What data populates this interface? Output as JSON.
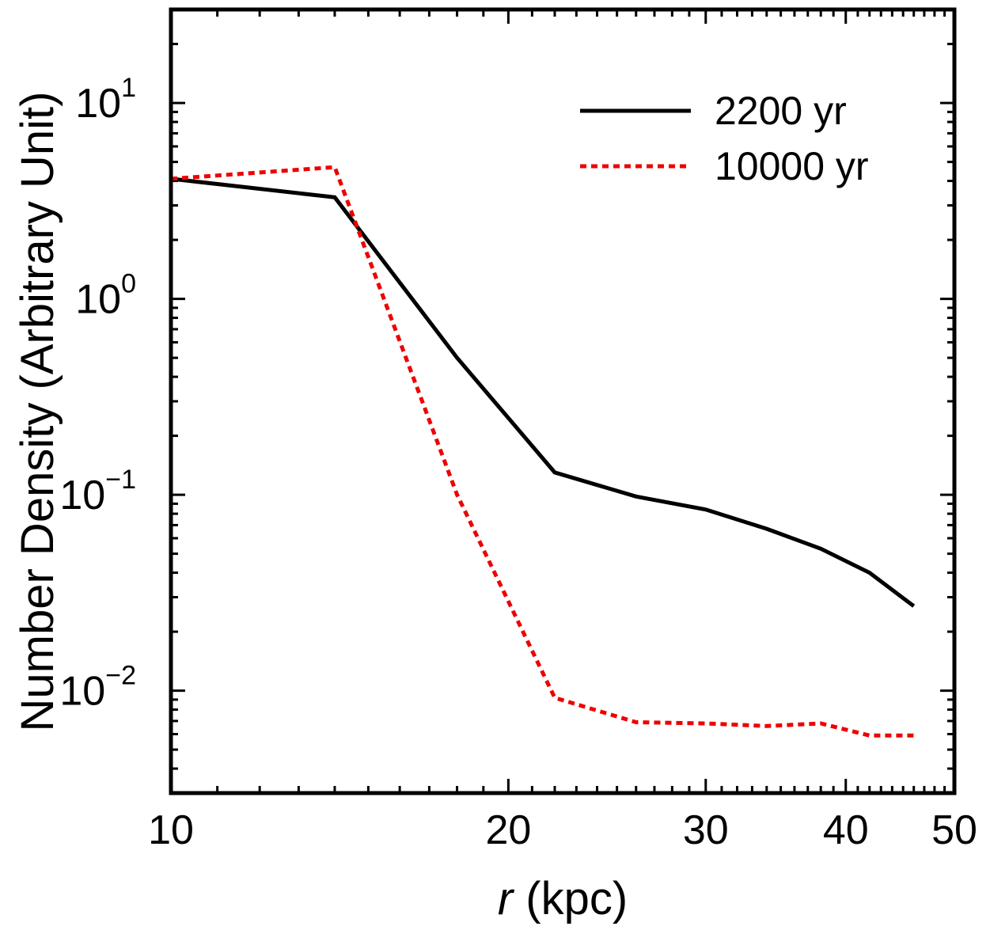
{
  "chart_data": {
    "type": "line",
    "xscale": "log",
    "yscale": "log",
    "xlim": [
      10,
      50
    ],
    "ylim": [
      0.003,
      30
    ],
    "xlabel_var": "r",
    "xlabel_unit": " (kpc)",
    "ylabel": "Number Density (Arbitrary Unit)",
    "x_ticks": [
      {
        "value": 10,
        "label": "10"
      },
      {
        "value": 20,
        "label": "20"
      },
      {
        "value": 30,
        "label": "30"
      },
      {
        "value": 40,
        "label": "40"
      },
      {
        "value": 50,
        "label": "50"
      }
    ],
    "y_ticks": [
      {
        "value": 10,
        "base": "10",
        "exp": "1"
      },
      {
        "value": 1,
        "base": "10",
        "exp": "0"
      },
      {
        "value": 0.1,
        "base": "10",
        "exp": "−1"
      },
      {
        "value": 0.01,
        "base": "10",
        "exp": "−2"
      }
    ],
    "legend": {
      "position": "top-right"
    },
    "series": [
      {
        "name": "2200 yr",
        "color": "#000000",
        "style": "solid",
        "x": [
          10,
          14,
          18,
          22,
          26,
          30,
          34,
          38,
          42,
          46
        ],
        "y": [
          4.1,
          3.3,
          0.5,
          0.13,
          0.098,
          0.084,
          0.067,
          0.053,
          0.04,
          0.027
        ]
      },
      {
        "name": "10000 yr",
        "color": "#ee0000",
        "style": "dotted",
        "x": [
          10,
          14,
          18,
          22,
          26,
          30,
          34,
          38,
          42,
          46
        ],
        "y": [
          4.1,
          4.7,
          0.1,
          0.0092,
          0.0069,
          0.0068,
          0.0066,
          0.0068,
          0.0059,
          0.0059
        ]
      }
    ]
  }
}
